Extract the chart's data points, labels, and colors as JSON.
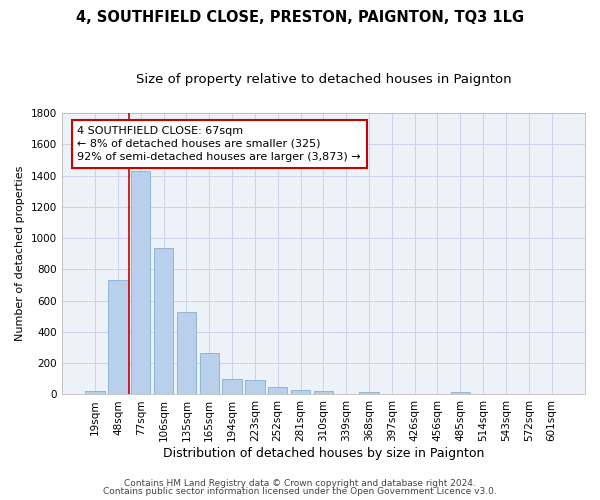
{
  "title1": "4, SOUTHFIELD CLOSE, PRESTON, PAIGNTON, TQ3 1LG",
  "title2": "Size of property relative to detached houses in Paignton",
  "xlabel": "Distribution of detached houses by size in Paignton",
  "ylabel": "Number of detached properties",
  "categories": [
    "19sqm",
    "48sqm",
    "77sqm",
    "106sqm",
    "135sqm",
    "165sqm",
    "194sqm",
    "223sqm",
    "252sqm",
    "281sqm",
    "310sqm",
    "339sqm",
    "368sqm",
    "397sqm",
    "426sqm",
    "456sqm",
    "485sqm",
    "514sqm",
    "543sqm",
    "572sqm",
    "601sqm"
  ],
  "values": [
    20,
    730,
    1430,
    940,
    530,
    265,
    100,
    90,
    50,
    30,
    20,
    0,
    15,
    0,
    0,
    0,
    15,
    0,
    0,
    0,
    0
  ],
  "bar_color": "#b8d0ec",
  "bar_edge_color": "#85aed4",
  "grid_color": "#c8d4e8",
  "background_color": "#edf2f9",
  "vline_color": "#cc0000",
  "vline_x": 1.5,
  "annotation_text": "4 SOUTHFIELD CLOSE: 67sqm\n← 8% of detached houses are smaller (325)\n92% of semi-detached houses are larger (3,873) →",
  "annotation_box_color": "#cc0000",
  "footnote1": "Contains HM Land Registry data © Crown copyright and database right 2024.",
  "footnote2": "Contains public sector information licensed under the Open Government Licence v3.0.",
  "ylim": [
    0,
    1800
  ],
  "yticks": [
    0,
    200,
    400,
    600,
    800,
    1000,
    1200,
    1400,
    1600,
    1800
  ],
  "title1_fontsize": 10.5,
  "title2_fontsize": 9.5,
  "xlabel_fontsize": 9,
  "ylabel_fontsize": 8,
  "tick_fontsize": 7.5,
  "annotation_fontsize": 8,
  "footnote_fontsize": 6.5
}
